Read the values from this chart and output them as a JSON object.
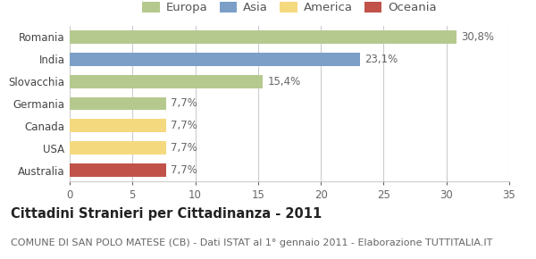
{
  "categories": [
    "Romania",
    "India",
    "Slovacchia",
    "Germania",
    "Canada",
    "USA",
    "Australia"
  ],
  "values": [
    30.8,
    23.1,
    15.4,
    7.7,
    7.7,
    7.7,
    7.7
  ],
  "labels": [
    "30,8%",
    "23,1%",
    "15,4%",
    "7,7%",
    "7,7%",
    "7,7%",
    "7,7%"
  ],
  "colors": [
    "#b5c98e",
    "#7b9fc7",
    "#b5c98e",
    "#b5c98e",
    "#f5d97e",
    "#f5d97e",
    "#c0524a"
  ],
  "legend_items": [
    {
      "label": "Europa",
      "color": "#b5c98e"
    },
    {
      "label": "Asia",
      "color": "#7b9fc7"
    },
    {
      "label": "America",
      "color": "#f5d97e"
    },
    {
      "label": "Oceania",
      "color": "#c0524a"
    }
  ],
  "xlim": [
    0,
    35
  ],
  "xticks": [
    0,
    5,
    10,
    15,
    20,
    25,
    30,
    35
  ],
  "title": "Cittadini Stranieri per Cittadinanza - 2011",
  "subtitle": "COMUNE DI SAN POLO MATESE (CB) - Dati ISTAT al 1° gennaio 2011 - Elaborazione TUTTITALIA.IT",
  "background_color": "#ffffff",
  "grid_color": "#cccccc",
  "bar_height": 0.6,
  "title_fontsize": 10.5,
  "subtitle_fontsize": 8,
  "label_fontsize": 8.5,
  "tick_fontsize": 8.5,
  "legend_fontsize": 9.5
}
